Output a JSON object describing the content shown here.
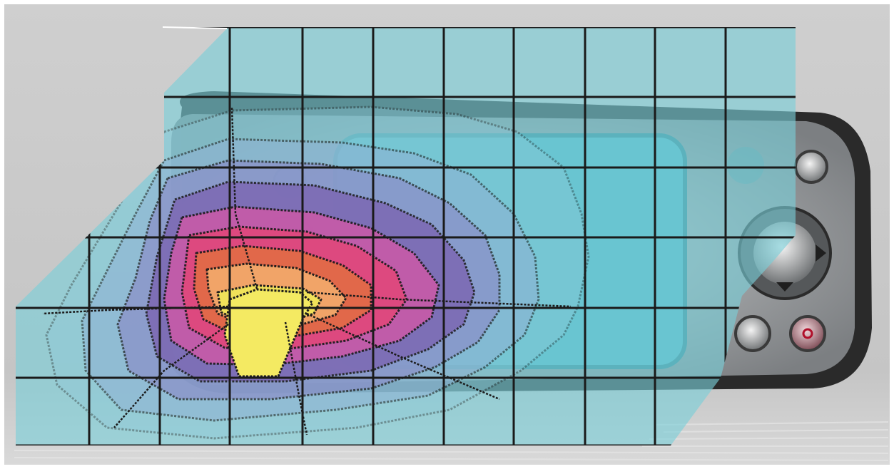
{
  "image": {
    "subject": "contour-heatmap-overlay-on-handheld-device",
    "background_color": "#c9c9c9",
    "overlay_base_color": "#79cfd8",
    "grid_color": "#1a1a1a",
    "contour_colors": [
      "#8fc9d9",
      "#8fb2d4",
      "#8a8fc8",
      "#7c68b3",
      "#c85aa8",
      "#e0487c",
      "#e26b46",
      "#f2a86a",
      "#f1e55a"
    ],
    "device_body_color": "#2a2a2a",
    "device_bezel_color": "#a7a9ab",
    "device_screen_color": "#4fb6c4",
    "buttons": [
      "up-button",
      "ok-button",
      "left-button",
      "right-button",
      "power-button"
    ]
  }
}
